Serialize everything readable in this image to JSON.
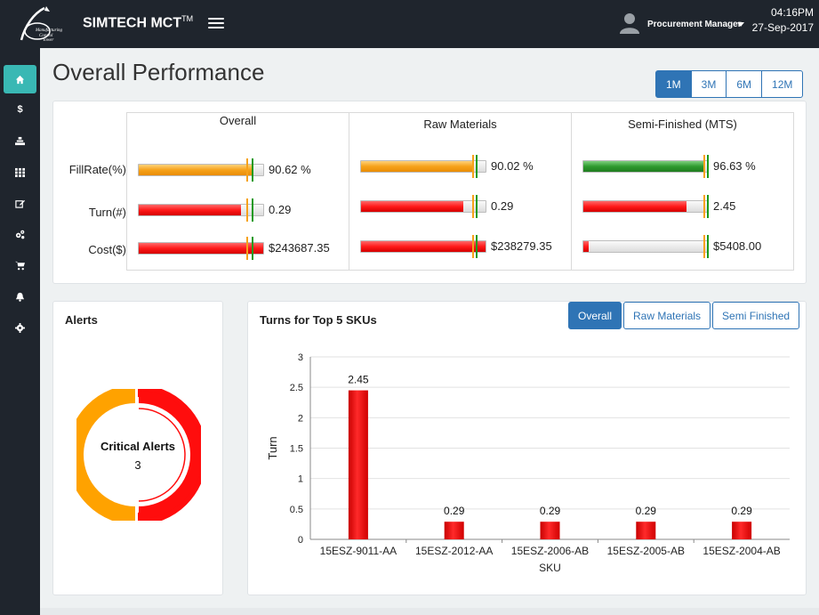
{
  "header": {
    "brand": "SIMTECH MCT",
    "brand_sup": "TM",
    "logo_text": "Manufacturing Control Tower",
    "user": "Procurement Manager",
    "time": "04:16PM",
    "date": "27-Sep-2017"
  },
  "sidebar": {
    "items": [
      {
        "icon": "home-icon",
        "active": true
      },
      {
        "icon": "dollar-icon",
        "label": "$",
        "active": false
      },
      {
        "icon": "factory-icon",
        "active": false
      },
      {
        "icon": "grid-icon",
        "active": false
      },
      {
        "icon": "edit-icon",
        "active": false
      },
      {
        "icon": "cogs-icon",
        "active": false
      },
      {
        "icon": "cart-icon",
        "active": false
      },
      {
        "icon": "bell-icon",
        "active": false
      },
      {
        "icon": "gear-icon",
        "active": false
      }
    ]
  },
  "page": {
    "title": "Overall Performance",
    "ranges": [
      "1M",
      "3M",
      "6M",
      "12M"
    ],
    "active_range": "1M"
  },
  "performance": {
    "columns": [
      "Overall",
      "Raw Materials",
      "Semi-Finished (MTS)"
    ],
    "rows": [
      "FillRate(%)",
      "Turn(#)",
      "Cost($)"
    ],
    "cells": [
      [
        {
          "value": "90.62 %",
          "fill": 0.9062,
          "color": "orange"
        },
        {
          "value": "0.29",
          "fill": 0.82,
          "color": "red"
        },
        {
          "value": "$243687.35",
          "fill": 1.0,
          "color": "red"
        }
      ],
      [
        {
          "value": "90.02 %",
          "fill": 0.9002,
          "color": "orange"
        },
        {
          "value": "0.29",
          "fill": 0.82,
          "color": "red"
        },
        {
          "value": "$238279.35",
          "fill": 1.0,
          "color": "red"
        }
      ],
      [
        {
          "value": "96.63 %",
          "fill": 0.9663,
          "color": "green"
        },
        {
          "value": "2.45",
          "fill": 0.83,
          "color": "red"
        },
        {
          "value": "$5408.00",
          "fill": 0.04,
          "color": "red"
        }
      ]
    ]
  },
  "alerts": {
    "title": "Alerts",
    "label": "Critical Alerts",
    "count": "3",
    "colors": {
      "red": "#ff0d0d",
      "orange": "#ffa200"
    }
  },
  "turns_chart": {
    "title": "Turns for Top 5 SKUs",
    "tabs": [
      "Overall",
      "Raw Materials",
      "Semi Finished"
    ],
    "active_tab": "Overall"
  },
  "chart_data": {
    "type": "bar",
    "categories": [
      "15ESZ-9011-AA",
      "15ESZ-2012-AA",
      "15ESZ-2006-AB",
      "15ESZ-2005-AB",
      "15ESZ-2004-AB"
    ],
    "values": [
      2.45,
      0.29,
      0.29,
      0.29,
      0.29
    ],
    "data_labels": [
      "2.45",
      "0.29",
      "0.29",
      "0.29",
      "0.29"
    ],
    "title": "Turns for Top 5 SKUs",
    "xlabel": "SKU",
    "ylabel": "Turn",
    "ylim": [
      0,
      3
    ],
    "yticks": [
      "0",
      "0.5",
      "1",
      "1.5",
      "2",
      "2.5",
      "3"
    ],
    "grid": true,
    "color": "#ff1a1a"
  }
}
